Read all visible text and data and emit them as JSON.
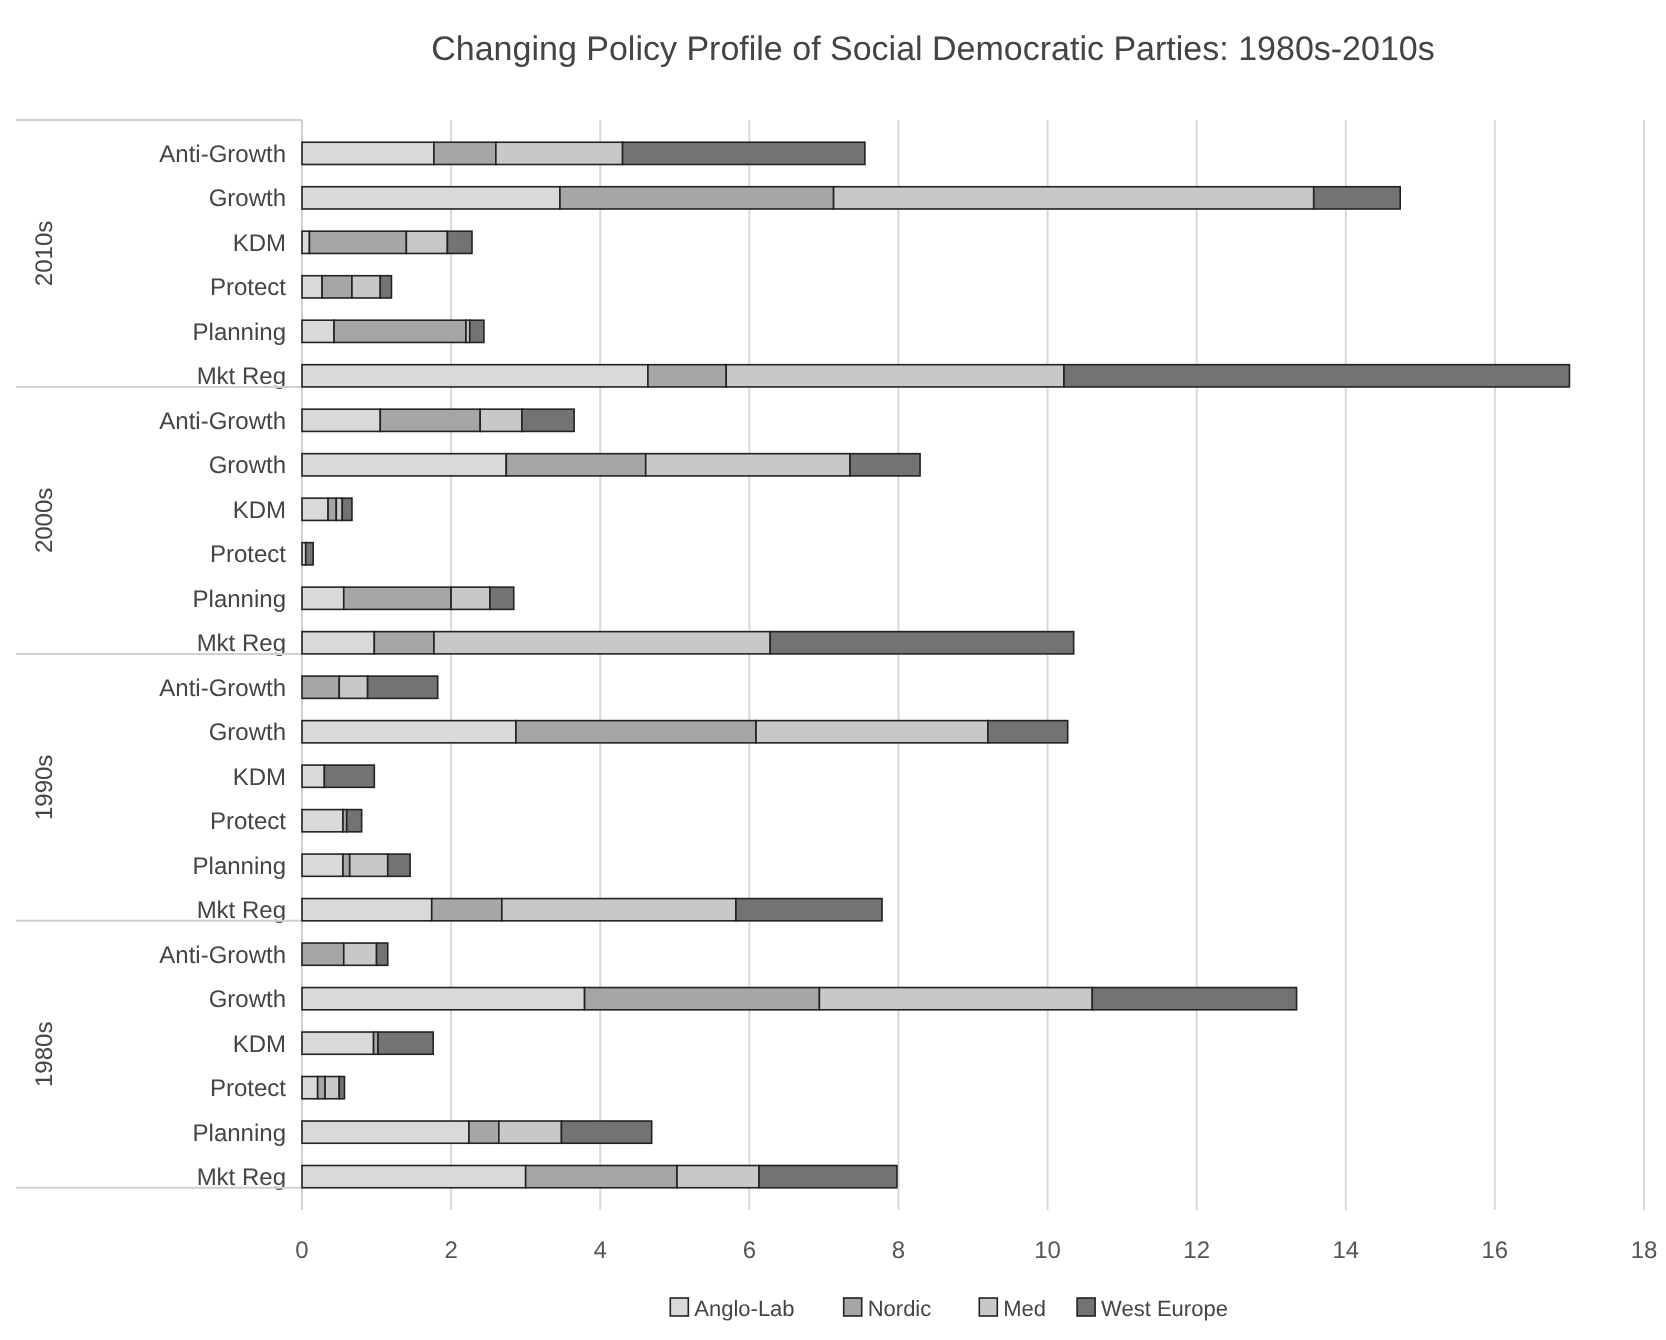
{
  "chart_data": {
    "type": "bar",
    "orientation": "horizontal",
    "stacked": true,
    "title": "Changing Policy Profile of Social Democratic Parties: 1980s-2010s",
    "categories": [
      "Anti-Growth",
      "Growth",
      "KDM",
      "Protect",
      "Planning",
      "Mkt Reg",
      "Anti-Growth",
      "Growth",
      "KDM",
      "Protect",
      "Planning",
      "Mkt Reg",
      "Anti-Growth",
      "Growth",
      "KDM",
      "Protect",
      "Planning",
      "Mkt Reg",
      "Anti-Growth",
      "Growth",
      "KDM",
      "Protect",
      "Planning",
      "Mkt Reg"
    ],
    "annotations": [
      "2010s",
      "2000s",
      "1990s",
      "1980s"
    ],
    "series": [
      {
        "name": "Anglo-Lab",
        "color": "#d9d9d9",
        "values": [
          1.77,
          3.46,
          0.1,
          0.27,
          0.43,
          4.64,
          1.05,
          2.74,
          0.35,
          0.05,
          0.56,
          0.97,
          0,
          2.87,
          0.3,
          0.55,
          0.55,
          1.74,
          0,
          3.79,
          0.96,
          0.21,
          2.24,
          3.0
        ]
      },
      {
        "name": "Nordic",
        "color": "#a6a6a6",
        "values": [
          0.83,
          3.67,
          1.3,
          0.4,
          1.77,
          1.05,
          1.34,
          1.87,
          0.11,
          0,
          1.44,
          0.8,
          0.5,
          3.22,
          0,
          0.05,
          0.09,
          0.94,
          0.56,
          3.15,
          0.06,
          0.1,
          0.4,
          2.03
        ]
      },
      {
        "name": "Med",
        "color": "#c8c8c8",
        "values": [
          1.7,
          6.44,
          0.55,
          0.38,
          0.05,
          4.53,
          0.56,
          2.74,
          0.08,
          0,
          0.52,
          4.51,
          0.38,
          3.11,
          0,
          0,
          0.51,
          3.14,
          0.44,
          3.66,
          0,
          0.19,
          0.84,
          1.1
        ]
      },
      {
        "name": "West Europe",
        "color": "#737373",
        "values": [
          3.25,
          1.16,
          0.33,
          0.15,
          0.19,
          6.78,
          0.7,
          0.94,
          0.13,
          0.1,
          0.32,
          4.07,
          0.94,
          1.07,
          0.67,
          0.2,
          0.3,
          1.96,
          0.15,
          2.74,
          0.74,
          0.07,
          1.21,
          1.85
        ]
      }
    ],
    "xlim": [
      0,
      18
    ],
    "xticks": [
      0,
      2,
      4,
      6,
      8,
      10,
      12,
      14,
      16,
      18
    ],
    "grid": "x",
    "legend": "bottom"
  }
}
